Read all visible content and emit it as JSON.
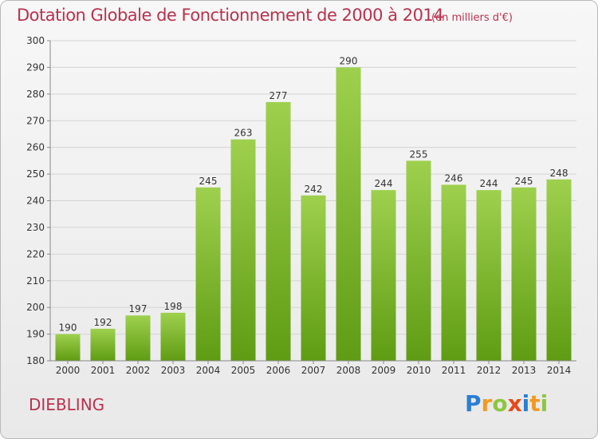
{
  "header": {
    "title": "Dotation Globale de Fonctionnement de 2000 à 2014",
    "unit": "(en milliers d'€)"
  },
  "footer": {
    "commune": "DIEBLING",
    "logo_text": "Proxiti"
  },
  "colors": {
    "title": "#b8324e",
    "bar_top": "#9ed04e",
    "bar_bottom": "#5f9c13",
    "grid": "#d4d4d4",
    "axis_text": "#333333"
  },
  "chart_data": {
    "type": "bar",
    "title": "Dotation Globale de Fonctionnement de 2000 à 2014",
    "subtitle": "(en milliers d'€)",
    "xlabel": "",
    "ylabel": "",
    "categories": [
      "2000",
      "2001",
      "2002",
      "2003",
      "2004",
      "2005",
      "2006",
      "2007",
      "2008",
      "2009",
      "2010",
      "2011",
      "2012",
      "2013",
      "2014"
    ],
    "values": [
      190,
      192,
      197,
      198,
      245,
      263,
      277,
      242,
      290,
      244,
      255,
      246,
      244,
      245,
      248
    ],
    "ylim": [
      180,
      300
    ],
    "yticks": [
      180,
      190,
      200,
      210,
      220,
      230,
      240,
      250,
      260,
      270,
      280,
      290,
      300
    ],
    "grid": true,
    "data_labels": true
  }
}
